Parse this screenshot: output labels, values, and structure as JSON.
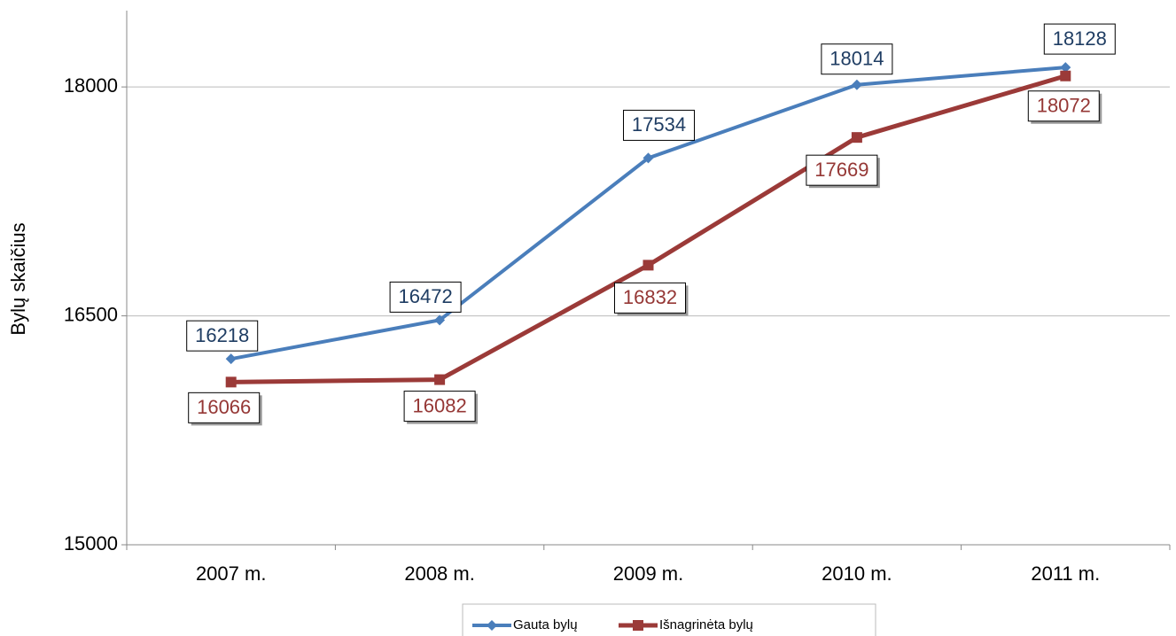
{
  "chart_data": {
    "type": "line",
    "y_label": "Bylų skaičius",
    "categories": [
      "2007 m.",
      "2008 m.",
      "2009 m.",
      "2010 m.",
      "2011 m."
    ],
    "series": [
      {
        "name": "Gauta bylų",
        "color": "#4a7ebb",
        "label_color": "#1f3d63",
        "values": [
          16218,
          16472,
          17534,
          18014,
          18128
        ]
      },
      {
        "name": "Išnagrinėta bylų",
        "color": "#9b3a38",
        "label_color": "#953735",
        "values": [
          16066,
          16082,
          16832,
          17669,
          18072
        ]
      }
    ],
    "ylim": [
      15000,
      18500
    ],
    "yticks": [
      15000,
      16500,
      18000
    ],
    "grid": true,
    "legend": "bottom"
  }
}
